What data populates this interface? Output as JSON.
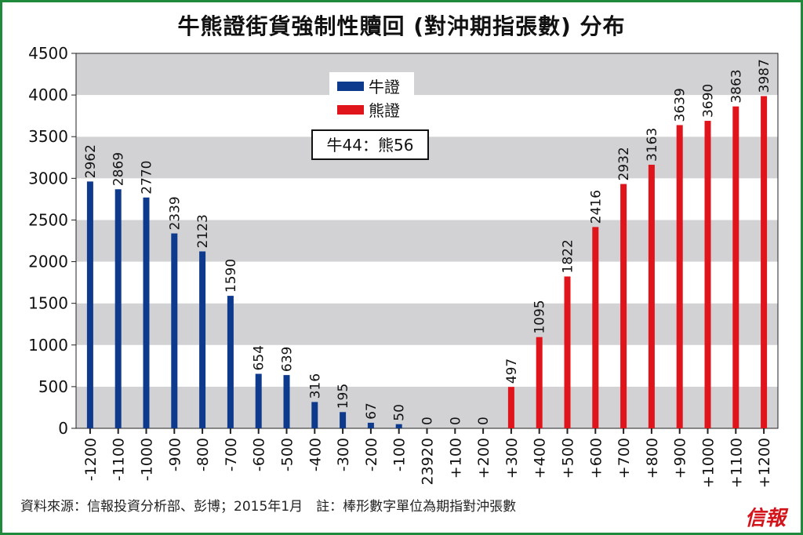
{
  "chart_data": {
    "type": "bar",
    "title": "牛熊證街貨強制性贖回 (對沖期指張數) 分布",
    "xlabel": "",
    "ylabel": "",
    "ylim": [
      0,
      4500
    ],
    "yticks": [
      "0",
      "500",
      "1000",
      "1500",
      "2000",
      "2500",
      "3000",
      "3500",
      "4000",
      "4500"
    ],
    "categories": [
      "-1200",
      "-1100",
      "-1000",
      "-900",
      "-800",
      "-700",
      "-600",
      "-500",
      "-400",
      "-300",
      "-200",
      "-100",
      "23920",
      "+100",
      "+200",
      "+300",
      "+400",
      "+500",
      "+600",
      "+700",
      "+800",
      "+900",
      "+1000",
      "+1100",
      "+1200"
    ],
    "values": [
      2962,
      2869,
      2770,
      2339,
      2123,
      1590,
      654,
      639,
      316,
      195,
      67,
      50,
      0,
      0,
      0,
      497,
      1095,
      1822,
      2416,
      2932,
      3163,
      3639,
      3690,
      3863,
      3987
    ],
    "series_of_bar": [
      "bull",
      "bull",
      "bull",
      "bull",
      "bull",
      "bull",
      "bull",
      "bull",
      "bull",
      "bull",
      "bull",
      "bull",
      "bull",
      "bull",
      "bull",
      "bear",
      "bear",
      "bear",
      "bear",
      "bear",
      "bear",
      "bear",
      "bear",
      "bear",
      "bear"
    ],
    "legend": [
      {
        "key": "bull",
        "name": "牛證",
        "color": "#0d3a8c"
      },
      {
        "key": "bear",
        "name": "熊證",
        "color": "#e0141b"
      }
    ],
    "legend_placement": "top-center",
    "annotation": "牛44：熊56",
    "grid": "alternating horizontal bands"
  },
  "footer": {
    "source": "資料來源：信報投資分析部、彭博；2015年1月　註：棒形數字單位為期指對沖張數",
    "logo": "信報"
  }
}
